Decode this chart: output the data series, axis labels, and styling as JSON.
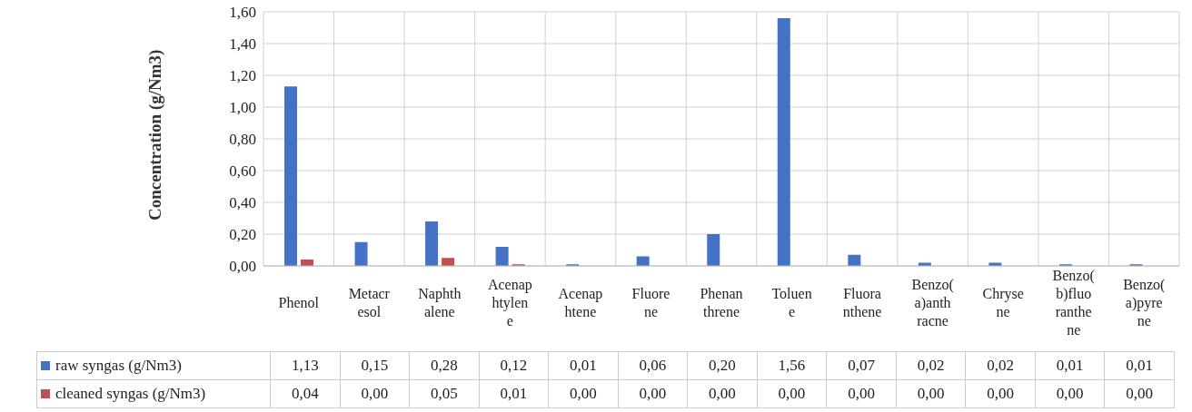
{
  "chart_data": {
    "type": "bar",
    "ylabel": "Concentration (g/Nm3)",
    "categories": [
      "Phenol",
      "Metacresol",
      "Naphthalene",
      "Acenaphtylene",
      "Acenaphtene",
      "Fluorene",
      "Phenanthrene",
      "Toluene",
      "Fluoranthene",
      "Benzo(a)anthracne",
      "Chrysene",
      "Benzo(b)fluoranthene",
      "Benzo(a)pyrene"
    ],
    "series": [
      {
        "name": "raw syngas (g/Nm3)",
        "color": "#4472c4",
        "values": [
          1.13,
          0.15,
          0.28,
          0.12,
          0.01,
          0.06,
          0.2,
          1.56,
          0.07,
          0.02,
          0.02,
          0.01,
          0.01
        ],
        "value_labels": [
          "1,13",
          "0,15",
          "0,28",
          "0,12",
          "0,01",
          "0,06",
          "0,20",
          "1,56",
          "0,07",
          "0,02",
          "0,02",
          "0,01",
          "0,01"
        ]
      },
      {
        "name": "cleaned syngas (g/Nm3)",
        "color": "#c0504d",
        "values": [
          0.04,
          0,
          0.05,
          0.01,
          0,
          0,
          0,
          0,
          0,
          0,
          0,
          0,
          0
        ],
        "value_labels": [
          "0,04",
          "0,00",
          "0,05",
          "0,01",
          "0,00",
          "0,00",
          "0,00",
          "0,00",
          "0,00",
          "0,00",
          "0,00",
          "0,00",
          "0,00"
        ]
      }
    ],
    "ylim": [
      0,
      1.6
    ],
    "yticks": [
      {
        "value": 0,
        "label": "0,00"
      },
      {
        "value": 0.2,
        "label": "0,20"
      },
      {
        "value": 0.4,
        "label": "0,40"
      },
      {
        "value": 0.6,
        "label": "0,60"
      },
      {
        "value": 0.8,
        "label": "0,80"
      },
      {
        "value": 1,
        "label": "1,00"
      },
      {
        "value": 1.2,
        "label": "1,20"
      },
      {
        "value": 1.4,
        "label": "1,40"
      },
      {
        "value": 1.6,
        "label": "1,60"
      }
    ],
    "grid": true,
    "legend": "bottom"
  }
}
